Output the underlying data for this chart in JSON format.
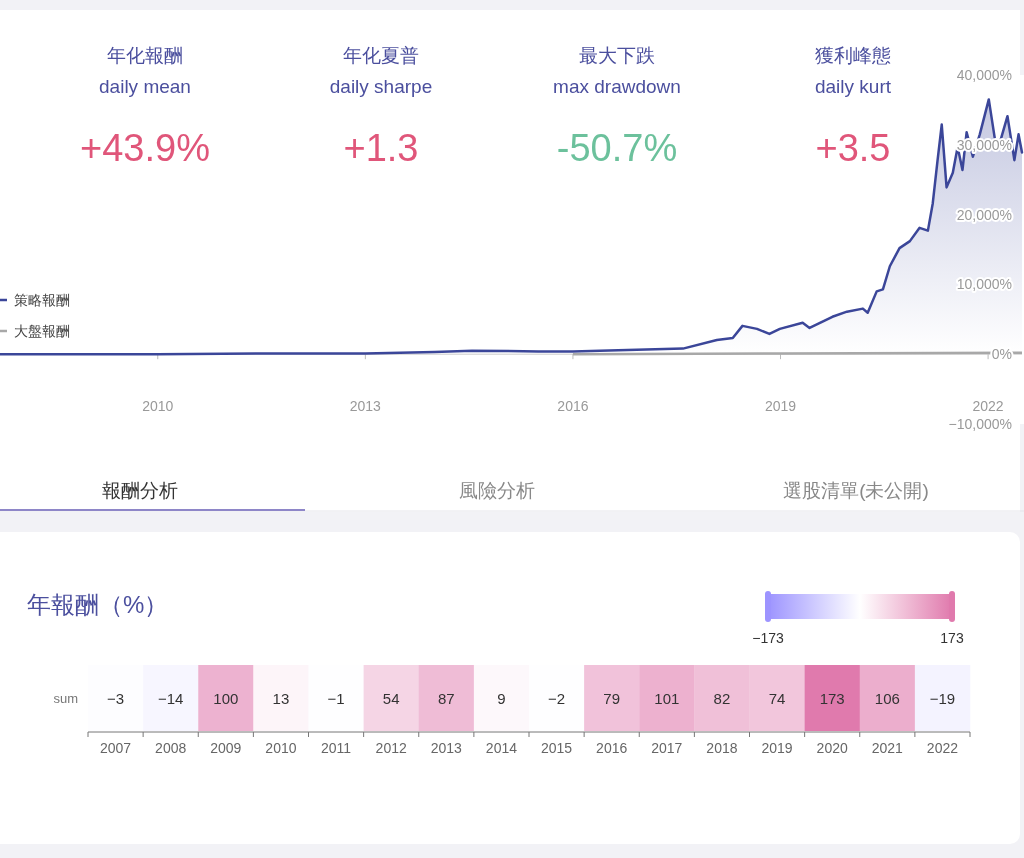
{
  "chart_data": [
    {
      "type": "other",
      "categories": [
        "年化報酬",
        "年化夏普",
        "最大下跌",
        "獲利峰態"
      ],
      "annotations": [
        "daily mean",
        "daily sharpe",
        "max drawdown",
        "daily kurt"
      ],
      "value_labels": [
        "+43.9%",
        "+1.3",
        "-50.7%",
        "+3.5"
      ],
      "colors": [
        "#e0567a",
        "#e0567a",
        "#6cc19c",
        "#e0567a"
      ]
    },
    {
      "type": "line",
      "legend": "left",
      "xlim": [
        2007.72,
        2022.49
      ],
      "ylim": [
        -10000,
        40000
      ],
      "xticks": [
        2010,
        2013,
        2016,
        2019,
        2022
      ],
      "yticks": [
        {
          "value": -10000,
          "label": "−10,000%"
        },
        {
          "value": 0,
          "label": "0%"
        },
        {
          "value": 10000,
          "label": "10,000%"
        },
        {
          "value": 20000,
          "label": "20,000%"
        },
        {
          "value": 30000,
          "label": "30,000%"
        },
        {
          "value": 40000,
          "label": "40,000%"
        }
      ],
      "series": [
        {
          "name": "策略報酬",
          "type": "area",
          "color": "#3b4699",
          "x": [
            2007.72,
            2009.0,
            2010.0,
            2011.5,
            2013.0,
            2014.0,
            2014.54,
            2015.5,
            2016.0,
            2016.39,
            2017.59,
            2018.08,
            2018.31,
            2018.45,
            2018.66,
            2018.84,
            2018.99,
            2019.32,
            2019.42,
            2019.75,
            2019.96,
            2020.19,
            2020.26,
            2020.39,
            2020.48,
            2020.58,
            2020.72,
            2020.87,
            2021.01,
            2021.13,
            2021.2,
            2021.27,
            2021.33,
            2021.4,
            2021.49,
            2021.56,
            2021.63,
            2021.69,
            2021.78,
            2021.88,
            2022.01,
            2022.1,
            2022.17,
            2022.28,
            2022.38,
            2022.44,
            2022.49
          ],
          "values": [
            0,
            0,
            0,
            100,
            100,
            300,
            500,
            400,
            400,
            500,
            800,
            2030,
            2320,
            4060,
            3630,
            2900,
            3630,
            4500,
            3770,
            5360,
            6090,
            6530,
            5940,
            9000,
            9280,
            12600,
            15200,
            16200,
            18100,
            17700,
            21600,
            27800,
            32900,
            23900,
            26000,
            29700,
            26400,
            31800,
            28300,
            31500,
            36500,
            30700,
            30300,
            34100,
            27800,
            31500,
            28900
          ]
        },
        {
          "name": "大盤報酬",
          "type": "line",
          "color": "#a8a8a8",
          "x": [
            2016.0,
            2019.0,
            2022.49
          ],
          "values": [
            0,
            100,
            200
          ]
        }
      ]
    },
    {
      "type": "other",
      "annotations": [
        "報酬分析",
        "風險分析",
        "選股清單(未公開)"
      ]
    },
    {
      "type": "heatmap",
      "title": "年報酬（%）",
      "categories": [
        "2007",
        "2008",
        "2009",
        "2010",
        "2011",
        "2012",
        "2013",
        "2014",
        "2015",
        "2016",
        "2017",
        "2018",
        "2019",
        "2020",
        "2021",
        "2022"
      ],
      "y_categories": [
        "sum"
      ],
      "cells": [
        [
          -3,
          -14,
          100,
          13,
          -1,
          54,
          87,
          9,
          -2,
          79,
          101,
          82,
          74,
          173,
          106,
          -19
        ]
      ],
      "cell_labels": [
        [
          "−3",
          "−14",
          "100",
          "13",
          "−1",
          "54",
          "87",
          "9",
          "−2",
          "79",
          "101",
          "82",
          "74",
          "173",
          "106",
          "−19"
        ]
      ],
      "clim": [
        -173,
        173
      ],
      "cticks": [
        {
          "value": -173,
          "label": "−173"
        },
        {
          "value": 173,
          "label": "173"
        }
      ]
    }
  ]
}
